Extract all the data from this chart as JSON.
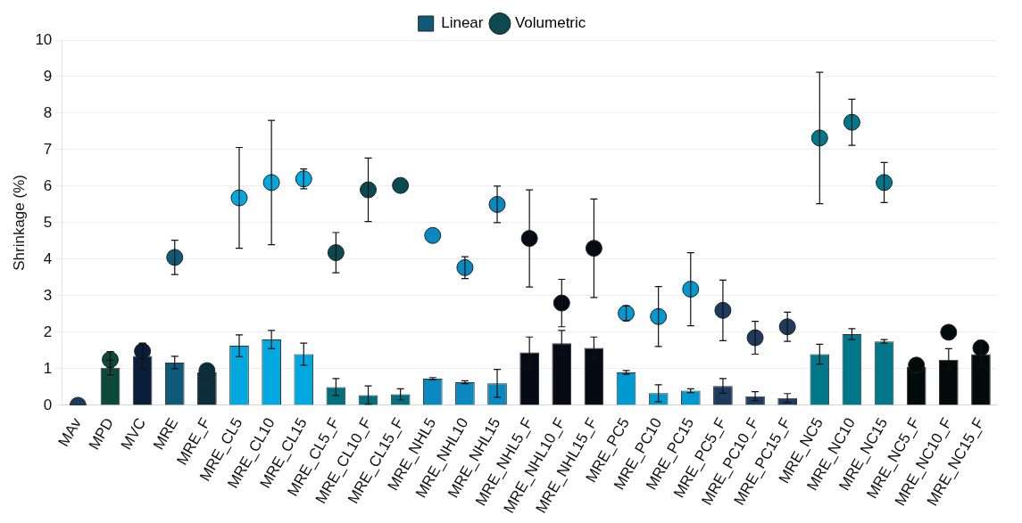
{
  "chart_data": {
    "type": "bar",
    "ylabel": "Shrinkage (%)",
    "categories": [
      "MAv",
      "MPD",
      "MVC",
      "MRE",
      "MRE_F",
      "MRE_CL5",
      "MRE_CL10",
      "MRE_CL15",
      "MRE_CL5_F",
      "MRE_CL10_F",
      "MRE_CL15_F",
      "MRE_NHL5",
      "MRE_NHL10",
      "MRE_NHL15",
      "MRE_NHL5_F",
      "MRE_NHL10_F",
      "MRE_NHL15_F",
      "MRE_PC5",
      "MRE_PC10",
      "MRE_PC15",
      "MRE_PC5_F",
      "MRE_PC10_F",
      "MRE_PC15_F",
      "MRE_NC5",
      "MRE_NC10",
      "MRE_NC15",
      "MRE_NC5_F",
      "MRE_NC10_F",
      "MRE_NC15_F"
    ],
    "series": [
      {
        "name": "Linear",
        "marker": "square",
        "color": "#0e5a78",
        "colors": [
          "#1a3a5c",
          "#0d4a3a",
          "#0a1e3a",
          "#0e5a78",
          "#0b2e3a",
          "#00a8e0",
          "#00a8e0",
          "#00a8e0",
          "#00707f",
          "#00707f",
          "#00707f",
          "#0a88c0",
          "#0a88c0",
          "#0a88c0",
          "#050a14",
          "#050a14",
          "#050a14",
          "#0099d0",
          "#0099d0",
          "#0099d0",
          "#1e3a5c",
          "#1e3a5c",
          "#1e3a5c",
          "#00788a",
          "#00788a",
          "#00788a",
          "#020a0a",
          "#020a0a",
          "#020a0a"
        ],
        "values": [
          0,
          1.03,
          1.35,
          1.17,
          0.9,
          1.63,
          1.8,
          1.4,
          0.5,
          0.28,
          0.3,
          0.73,
          0.63,
          0.6,
          1.45,
          1.7,
          1.57,
          0.9,
          0.33,
          0.4,
          0.53,
          0.25,
          0.2,
          1.4,
          1.95,
          1.75,
          1.05,
          1.25,
          1.4
        ],
        "errors": [
          null,
          0.2,
          0.35,
          0.17,
          null,
          0.3,
          0.25,
          0.3,
          0.23,
          0.25,
          0.15,
          0.03,
          0.04,
          0.38,
          0.42,
          0.35,
          0.3,
          0.05,
          0.23,
          0.05,
          0.2,
          0.12,
          0.12,
          0.27,
          0.15,
          0.05,
          null,
          0.3,
          0.35
        ]
      },
      {
        "name": "Volumetric",
        "type": "scatter",
        "marker": "circle",
        "color": "#0a4a50",
        "colors": [
          "#1a3a5c",
          "#0d4a3a",
          "#0a1e3a",
          "#0e5a78",
          "#0b2e3a",
          "#00a8e0",
          "#00a8e0",
          "#00a8e0",
          "#0a4a50",
          "#0a4a50",
          "#0a4a50",
          "#0a88c0",
          "#0a88c0",
          "#0a88c0",
          "#050a14",
          "#050a14",
          "#050a14",
          "#0099d0",
          "#0099d0",
          "#0099d0",
          "#1e3a5c",
          "#1e3a5c",
          "#1e3a5c",
          "#00788a",
          "#00788a",
          "#00788a",
          "#020a0a",
          "#020a0a",
          "#020a0a"
        ],
        "values": [
          0,
          1.25,
          1.48,
          4.05,
          0.95,
          5.68,
          6.1,
          6.2,
          4.18,
          5.9,
          6.02,
          4.65,
          3.77,
          5.5,
          4.57,
          2.8,
          4.3,
          2.52,
          2.43,
          3.18,
          2.6,
          1.85,
          2.15,
          7.32,
          7.75,
          6.1,
          1.1,
          2.0,
          1.57
        ],
        "errors": [
          null,
          0.22,
          0.2,
          0.47,
          null,
          1.38,
          1.7,
          0.27,
          0.55,
          0.87,
          null,
          null,
          0.3,
          0.5,
          1.33,
          0.65,
          1.35,
          0.2,
          0.82,
          1.0,
          0.83,
          0.45,
          0.4,
          1.8,
          0.63,
          0.55,
          null,
          null,
          0.2
        ]
      }
    ],
    "ylim": [
      0,
      10
    ],
    "yticks": [
      0,
      1,
      2,
      3,
      4,
      5,
      6,
      7,
      8,
      9,
      10
    ],
    "grid": "y",
    "legend": "top"
  }
}
